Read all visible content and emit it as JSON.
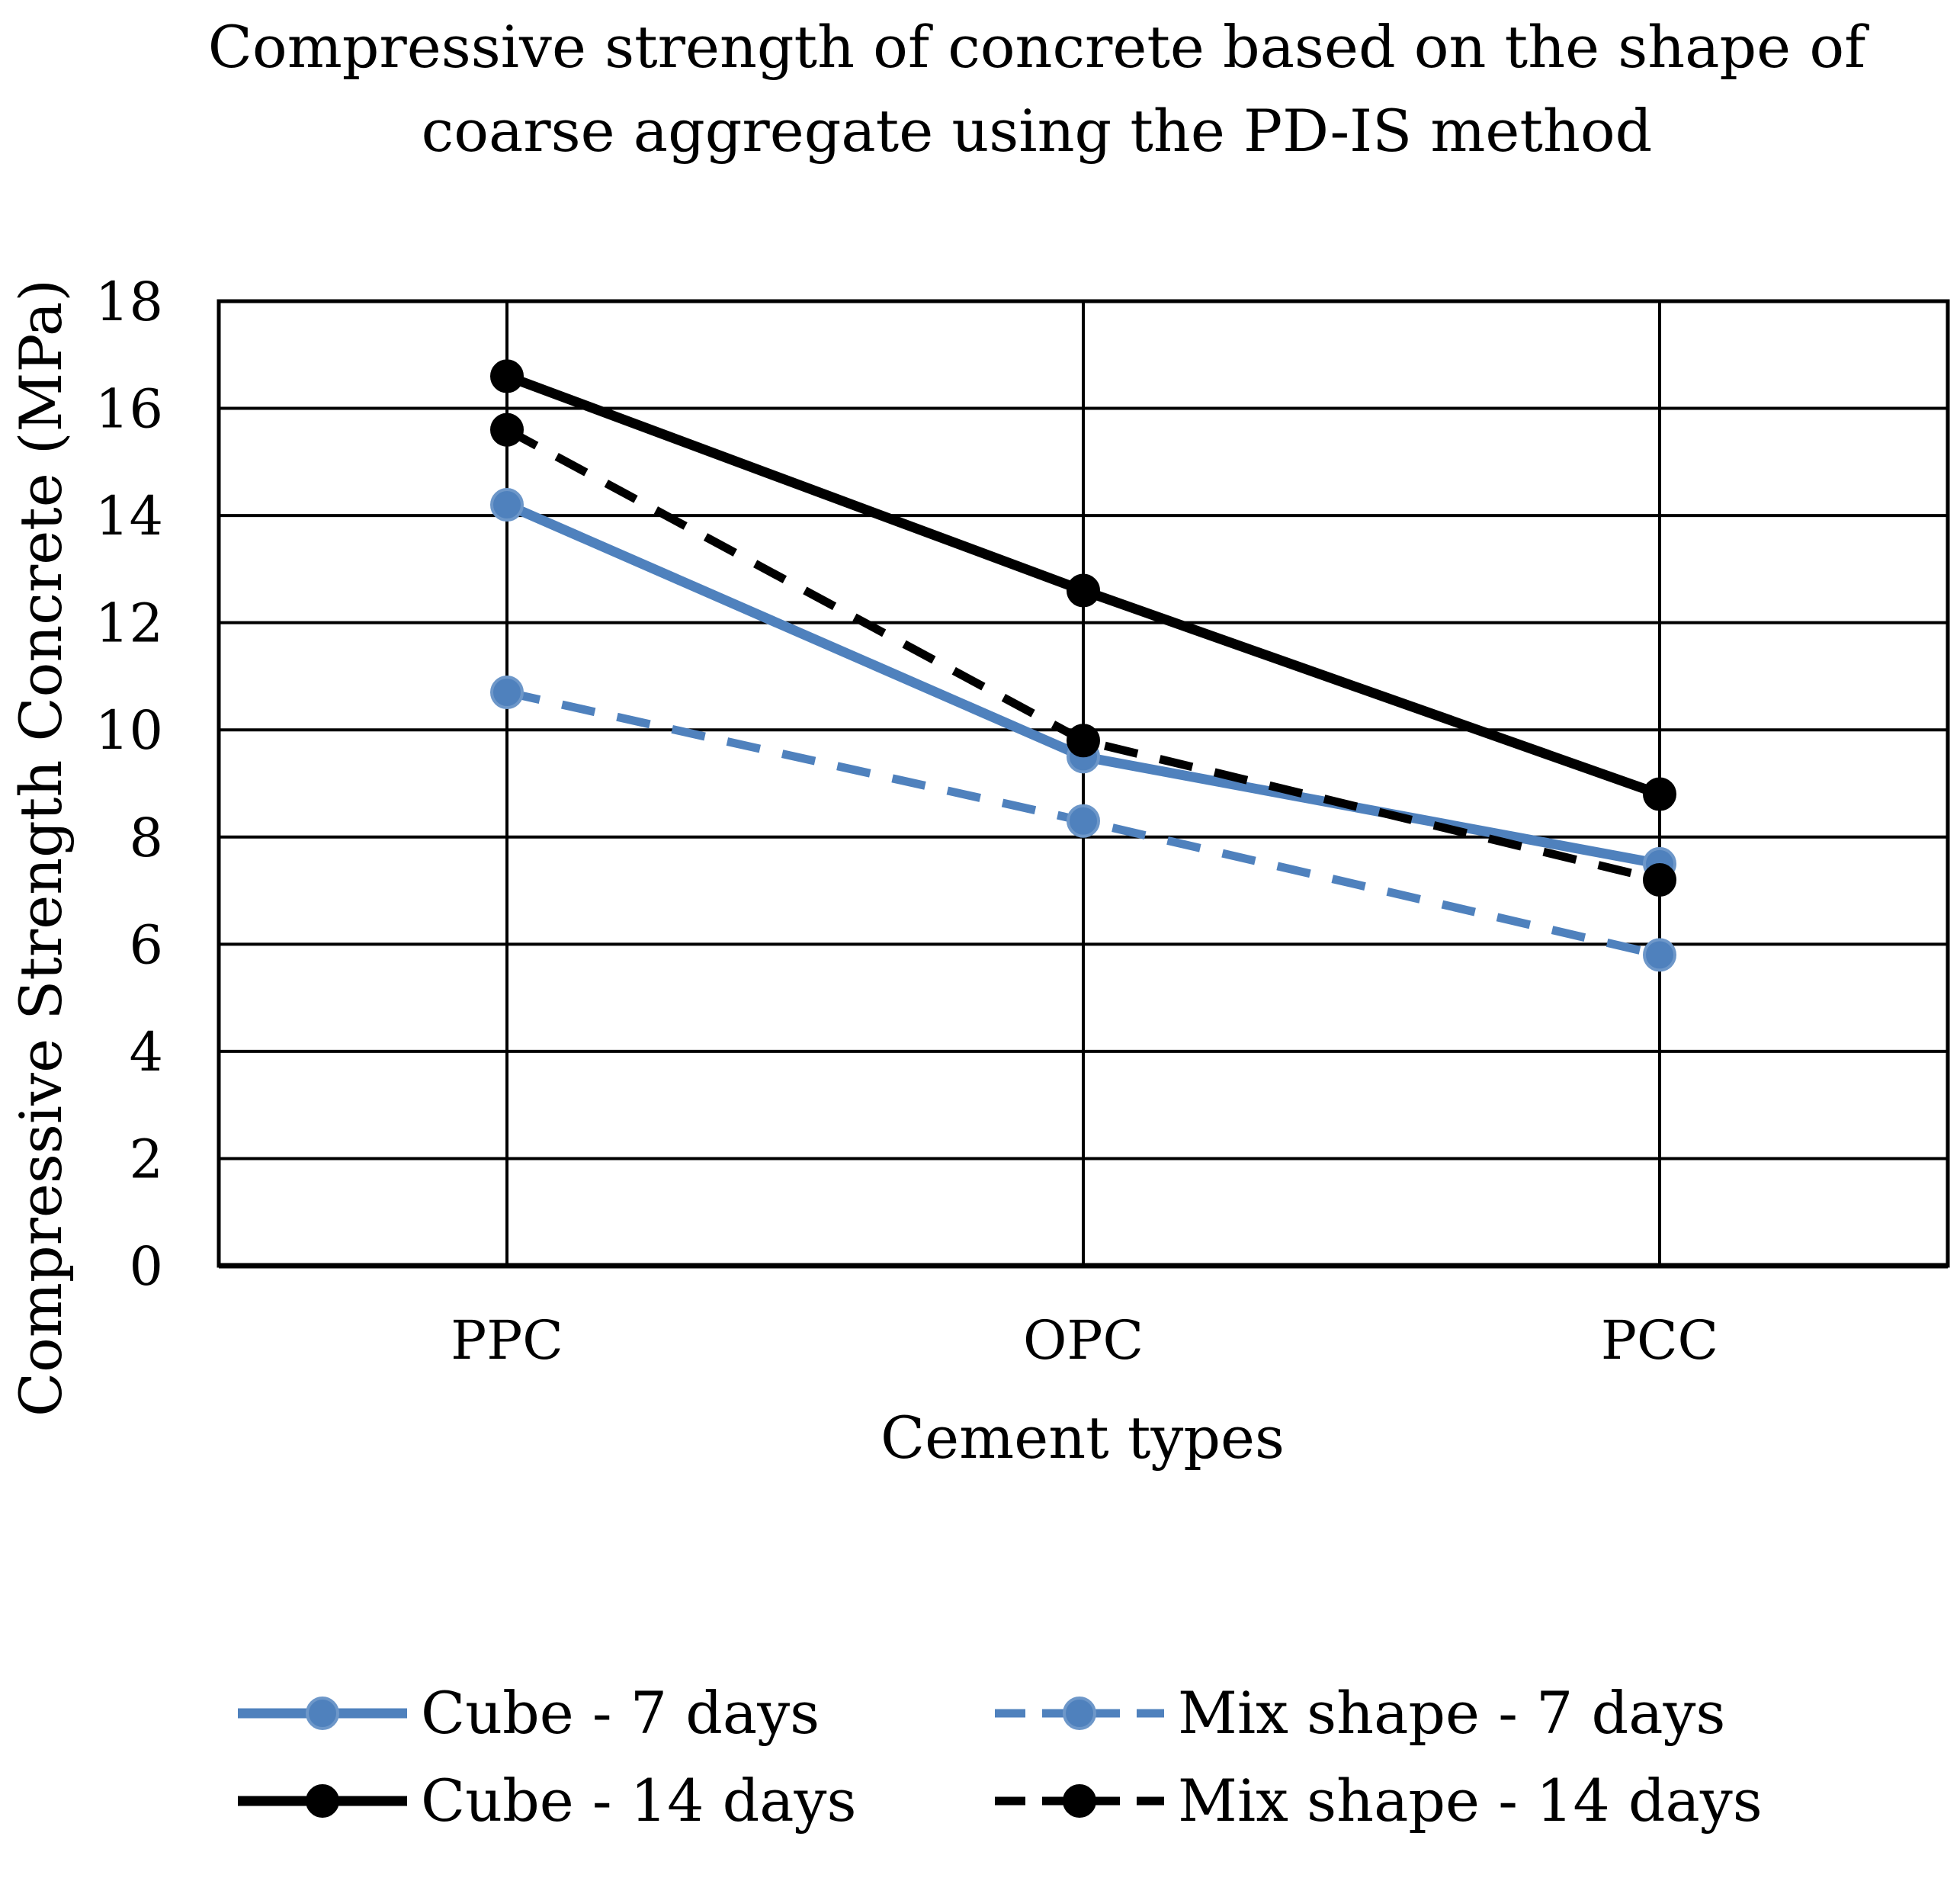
{
  "chart_data": {
    "type": "line",
    "title_lines": [
      "Compressive strength of concrete based on the shape of",
      "coarse aggregate using the PD-IS method"
    ],
    "xlabel": "Cement types",
    "ylabel": "Compressive Strength Concrete (MPa)",
    "categories": [
      "PPC",
      "OPC",
      "PCC"
    ],
    "ylim": [
      0,
      18
    ],
    "yticks": [
      "0",
      "2",
      "4",
      "6",
      "8",
      "10",
      "12",
      "14",
      "16",
      "18"
    ],
    "grid": true,
    "legend_position": "bottom",
    "series": [
      {
        "name": "Cube - 7 days",
        "values": [
          14.2,
          9.5,
          7.5
        ],
        "color": "#4f81bd",
        "dash": "solid"
      },
      {
        "name": "Mix shape - 7 days",
        "values": [
          10.7,
          8.3,
          5.8
        ],
        "color": "#4f81bd",
        "dash": "dashed"
      },
      {
        "name": "Cube - 14 days",
        "values": [
          16.6,
          12.6,
          8.8
        ],
        "color": "#000000",
        "dash": "solid"
      },
      {
        "name": "Mix shape - 14 days",
        "values": [
          15.6,
          9.8,
          7.2
        ],
        "color": "#000000",
        "dash": "dashed"
      }
    ]
  }
}
